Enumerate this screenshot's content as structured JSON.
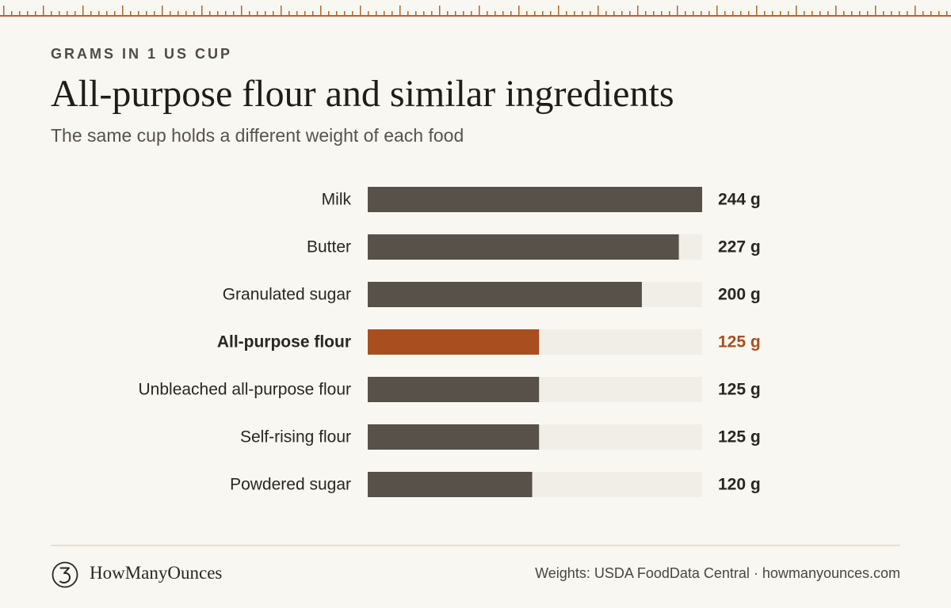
{
  "header": {
    "eyebrow": "GRAMS IN 1 US CUP",
    "title": "All-purpose flour and similar ingredients",
    "subtitle": "The same cup holds a different weight of each food"
  },
  "chart_data": {
    "type": "bar",
    "orientation": "horizontal",
    "categories": [
      "Milk",
      "Butter",
      "Granulated sugar",
      "All-purpose flour",
      "Unbleached all-purpose flour",
      "Self-rising flour",
      "Powdered sugar"
    ],
    "values": [
      244,
      227,
      200,
      125,
      125,
      125,
      120
    ],
    "value_labels": [
      "244 g",
      "227 g",
      "200 g",
      "125 g",
      "125 g",
      "125 g",
      "120 g"
    ],
    "highlight": "All-purpose flour",
    "xlim": [
      0,
      244
    ],
    "grid": false,
    "colors": {
      "bar": "#58514a",
      "highlight": "#a94e1f",
      "track": "#f1eee7"
    }
  },
  "footer": {
    "brand": "HowManyOunces",
    "logo_icon": "numeral-3-circle-icon",
    "source": "Weights: USDA FoodData Central · howmanyounces.com"
  },
  "decor": {
    "ruler_color": "#b5642f"
  }
}
